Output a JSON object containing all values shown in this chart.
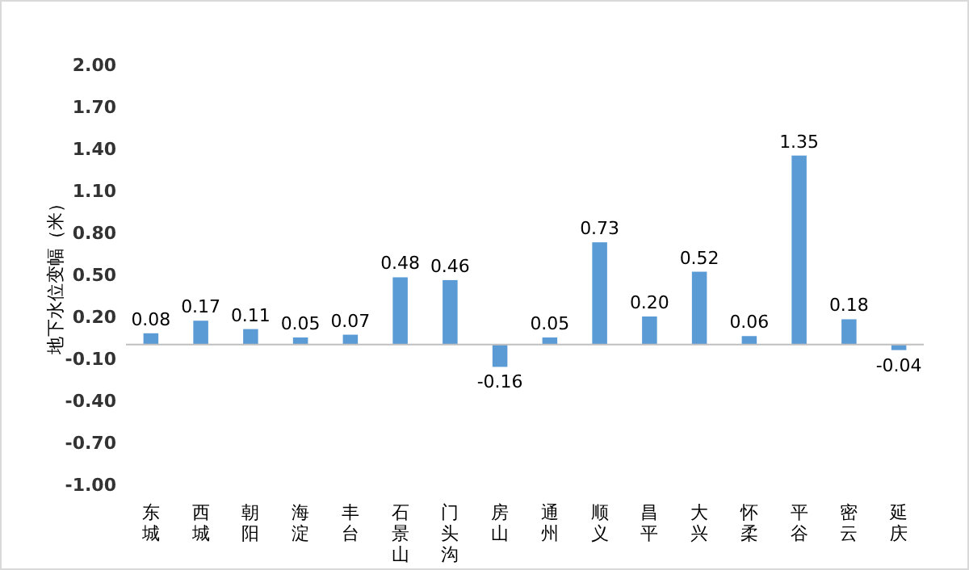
{
  "chart_data": {
    "type": "bar",
    "ylabel": "地下水位变幅（米）",
    "categories": [
      "东城",
      "西城",
      "朝阳",
      "海淀",
      "丰台",
      "石景山",
      "门头沟",
      "房山",
      "通州",
      "顺义",
      "昌平",
      "大兴",
      "怀柔",
      "平谷",
      "密云",
      "延庆"
    ],
    "values": [
      0.08,
      0.17,
      0.11,
      0.05,
      0.07,
      0.48,
      0.46,
      -0.16,
      0.05,
      0.73,
      0.2,
      0.52,
      0.06,
      1.35,
      0.18,
      -0.04
    ],
    "value_labels": [
      "0.08",
      "0.17",
      "0.11",
      "0.05",
      "0.07",
      "0.48",
      "0.46",
      "-0.16",
      "0.05",
      "0.73",
      "0.20",
      "0.52",
      "0.06",
      "1.35",
      "0.18",
      "-0.04"
    ],
    "color": "#5b9bd5",
    "ylim": [
      -1,
      2
    ],
    "yticks": [
      {
        "value": 2,
        "label": "2.00"
      },
      {
        "value": 1.7,
        "label": "1.70"
      },
      {
        "value": 1.4,
        "label": "1.40"
      },
      {
        "value": 1.1,
        "label": "1.10"
      },
      {
        "value": 0.8,
        "label": "0.80"
      },
      {
        "value": 0.5,
        "label": "0.50"
      },
      {
        "value": 0.2,
        "label": "0.20"
      },
      {
        "value": -0.1,
        "label": "-0.10"
      },
      {
        "value": -0.4,
        "label": "-0.40"
      },
      {
        "value": -0.7,
        "label": "-0.70"
      },
      {
        "value": -1,
        "label": "-1.00"
      }
    ],
    "grid": false
  }
}
